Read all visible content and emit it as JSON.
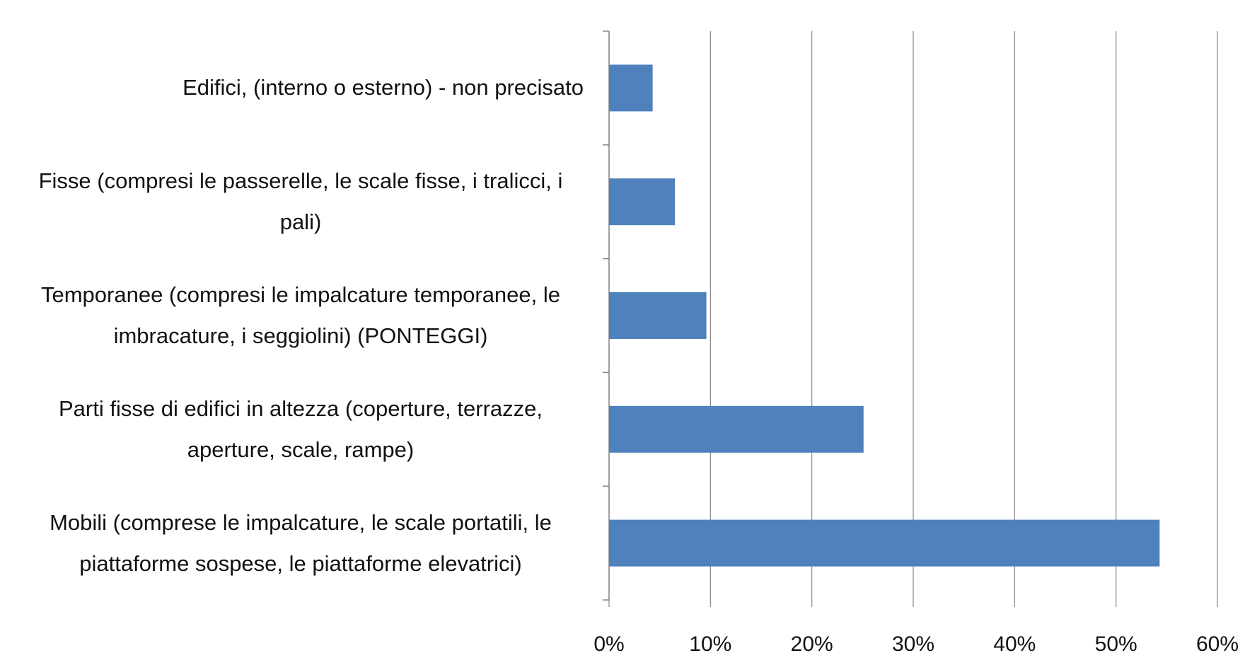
{
  "chart_data": {
    "type": "bar",
    "orientation": "horizontal",
    "categories": [
      "Edifici,  (interno o esterno) - non precisato",
      "Fisse (compresi le passerelle, le scale fisse, i tralicci, i pali)",
      "Temporanee (compresi le impalcature temporanee, le imbracature, i seggiolini) (PONTEGGI)",
      "Parti fisse di edifici in altezza (coperture, terrazze, aperture, scale, rampe)",
      "Mobili (comprese le impalcature, le scale portatili, le piattaforme sospese, le piattaforme elevatrici)"
    ],
    "values": [
      4.3,
      6.5,
      9.6,
      25.1,
      54.3
    ],
    "color": "#4f81bd",
    "xlim": [
      0,
      60
    ],
    "xticks": [
      {
        "value": 0,
        "label": "0%"
      },
      {
        "value": 10,
        "label": "10%"
      },
      {
        "value": 20,
        "label": "20%"
      },
      {
        "value": 30,
        "label": "30%"
      },
      {
        "value": 40,
        "label": "40%"
      },
      {
        "value": 50,
        "label": "50%"
      },
      {
        "value": 60,
        "label": "60%"
      }
    ],
    "grid": true
  }
}
